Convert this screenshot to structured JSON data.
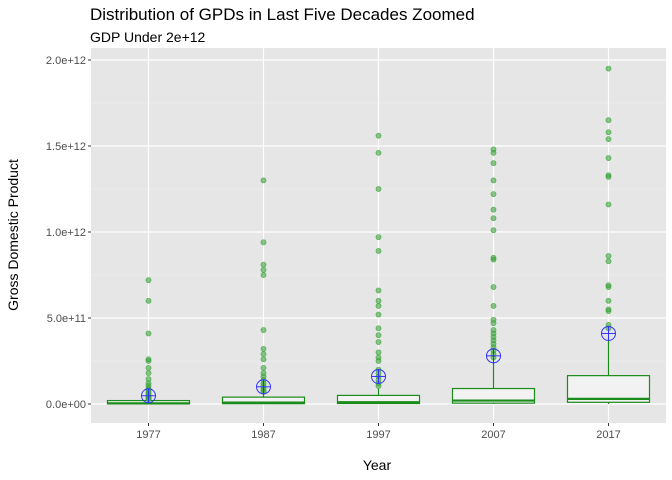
{
  "chart_data": {
    "type": "box",
    "title": "Distribution of GPDs in Last Five Decades Zoomed",
    "subtitle": "GDP Under 2e+12",
    "xlabel": "Year",
    "ylabel": "Gross Domestic Product",
    "ylim": [
      -100000000000.0,
      2050000000000.0
    ],
    "y_ticks": [
      0,
      500000000000.0,
      1000000000000.0,
      1500000000000.0,
      2000000000000.0
    ],
    "y_tick_labels": [
      "0.0e+00",
      "5.0e+11",
      "1.0e+12",
      "1.5e+12",
      "2.0e+12"
    ],
    "categories": [
      "1977",
      "1987",
      "1997",
      "2007",
      "2017"
    ],
    "grid": true,
    "legend": "none",
    "colors": {
      "box": "#1a8c1a",
      "points": "#3aa33a",
      "mean": "#3333ff",
      "panel": "#e6e6e6",
      "grid": "#ffffff",
      "box_fill": "#f2f2f2"
    },
    "boxes": [
      {
        "category": "1977",
        "whisker_low": 0,
        "q1": 1000000000.0,
        "median": 4000000000.0,
        "q3": 20000000000.0,
        "whisker_high": 20000000000.0,
        "mean": 48000000000.0,
        "outliers": [
          720000000000.0,
          600000000000.0,
          410000000000.0,
          260000000000.0,
          250000000000.0,
          210000000000.0,
          180000000000.0,
          145000000000.0,
          120000000000.0,
          105000000000.0,
          90000000000.0,
          80000000000.0,
          70000000000.0,
          60000000000.0,
          52000000000.0,
          45000000000.0,
          40000000000.0,
          35000000000.0,
          30000000000.0,
          27000000000.0
        ]
      },
      {
        "category": "1987",
        "whisker_low": 0,
        "q1": 2000000000.0,
        "median": 8000000000.0,
        "q3": 40000000000.0,
        "whisker_high": 60000000000.0,
        "mean": 100000000000.0,
        "outliers": [
          1300000000000.0,
          940000000000.0,
          810000000000.0,
          780000000000.0,
          750000000000.0,
          430000000000.0,
          320000000000.0,
          290000000000.0,
          260000000000.0,
          210000000000.0,
          180000000000.0,
          160000000000.0,
          140000000000.0,
          120000000000.0,
          105000000000.0,
          90000000000.0,
          80000000000.0,
          70000000000.0
        ]
      },
      {
        "category": "1997",
        "whisker_low": 0,
        "q1": 3000000000.0,
        "median": 10000000000.0,
        "q3": 50000000000.0,
        "whisker_high": 90000000000.0,
        "mean": 160000000000.0,
        "outliers": [
          1560000000000.0,
          1460000000000.0,
          1250000000000.0,
          970000000000.0,
          890000000000.0,
          660000000000.0,
          600000000000.0,
          570000000000.0,
          520000000000.0,
          440000000000.0,
          400000000000.0,
          360000000000.0,
          300000000000.0,
          270000000000.0,
          250000000000.0,
          200000000000.0,
          180000000000.0,
          160000000000.0,
          140000000000.0,
          120000000000.0,
          105000000000.0
        ]
      },
      {
        "category": "2007",
        "whisker_low": 0,
        "q1": 5000000000.0,
        "median": 20000000000.0,
        "q3": 90000000000.0,
        "whisker_high": 260000000000.0,
        "mean": 280000000000.0,
        "outliers": [
          1480000000000.0,
          1460000000000.0,
          1400000000000.0,
          1300000000000.0,
          1220000000000.0,
          1130000000000.0,
          1080000000000.0,
          1010000000000.0,
          850000000000.0,
          840000000000.0,
          680000000000.0,
          570000000000.0,
          490000000000.0,
          470000000000.0,
          430000000000.0,
          410000000000.0,
          390000000000.0,
          370000000000.0,
          350000000000.0,
          330000000000.0,
          310000000000.0,
          290000000000.0,
          270000000000.0
        ]
      },
      {
        "category": "2017",
        "whisker_low": 0,
        "q1": 10000000000.0,
        "median": 30000000000.0,
        "q3": 165000000000.0,
        "whisker_high": 390000000000.0,
        "mean": 410000000000.0,
        "outliers": [
          1950000000000.0,
          1650000000000.0,
          1580000000000.0,
          1540000000000.0,
          1430000000000.0,
          1330000000000.0,
          1320000000000.0,
          1160000000000.0,
          860000000000.0,
          830000000000.0,
          690000000000.0,
          680000000000.0,
          600000000000.0,
          550000000000.0,
          540000000000.0,
          460000000000.0,
          440000000000.0
        ]
      }
    ]
  }
}
